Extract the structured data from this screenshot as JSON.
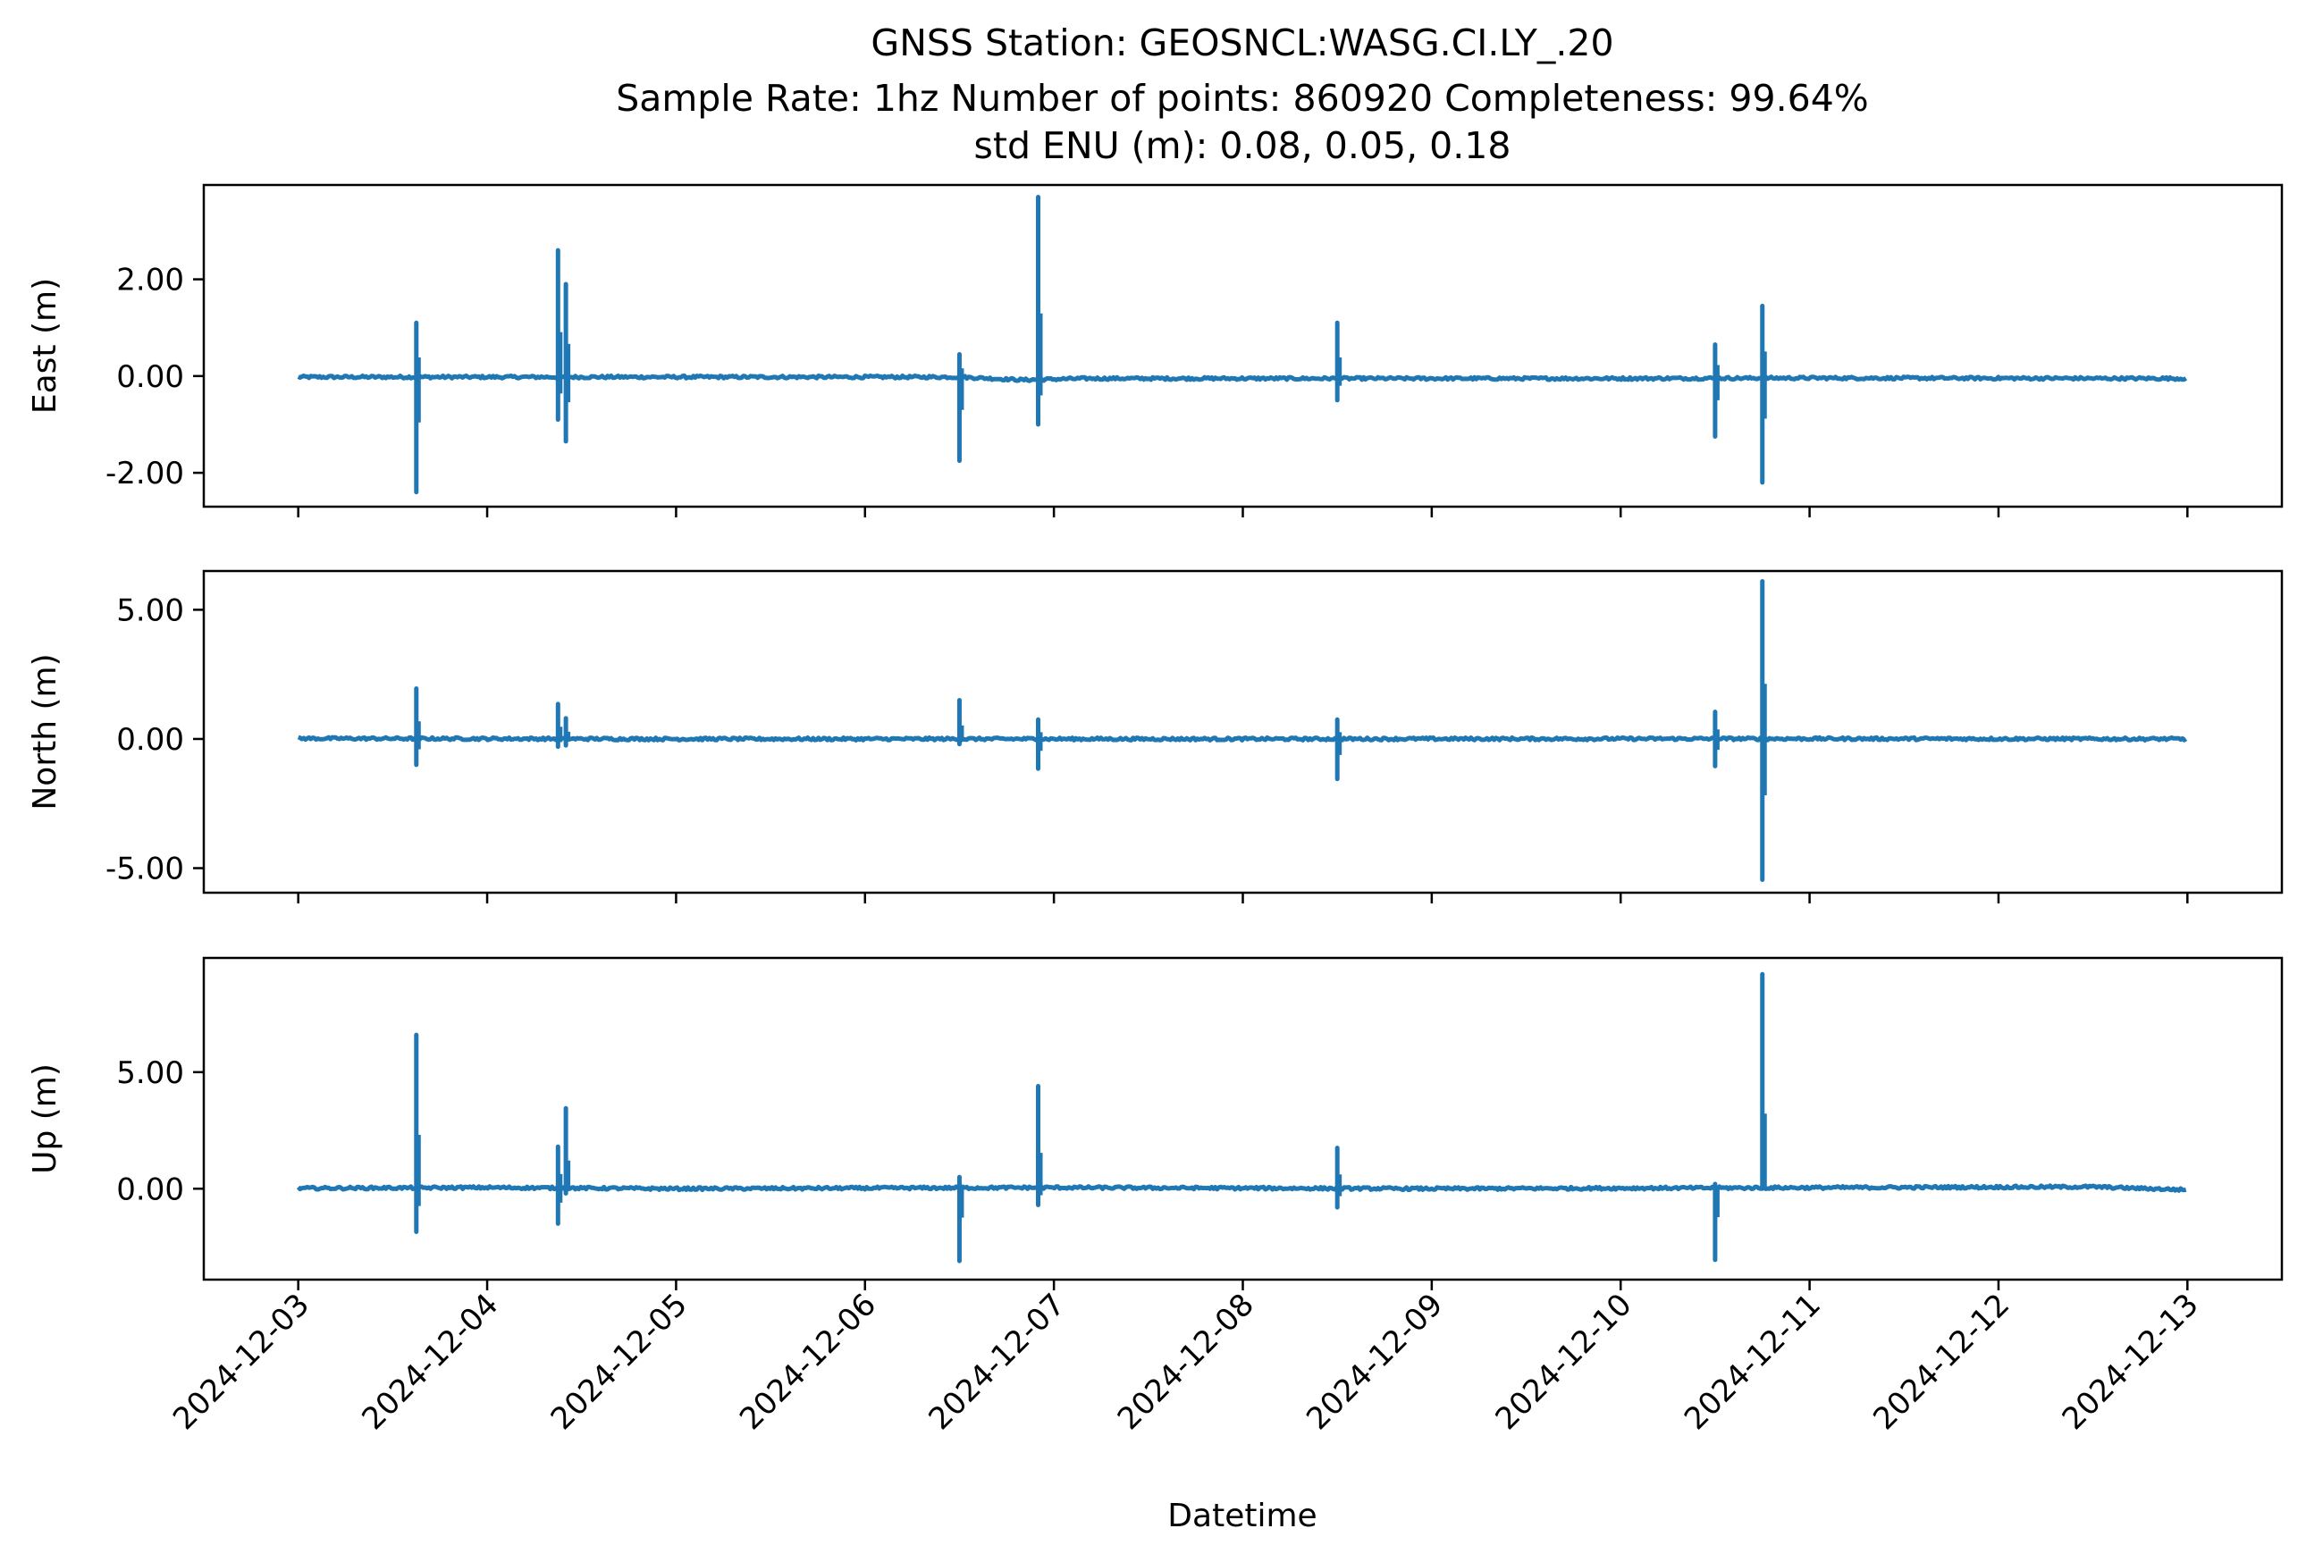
{
  "chart_data": {
    "type": "line",
    "title_lines": [
      "GNSS Station: GEOSNCL:WASG.CI.LY_.20",
      "Sample Rate: 1hz   Number of points: 860920    Completeness:  99.64%",
      "std ENU (m):  0.08, 0.05, 0.18"
    ],
    "xlabel": "Datetime",
    "x_ticks": [
      "2024-12-03",
      "2024-12-04",
      "2024-12-05",
      "2024-12-06",
      "2024-12-07",
      "2024-12-08",
      "2024-12-09",
      "2024-12-10",
      "2024-12-11",
      "2024-12-12",
      "2024-12-13"
    ],
    "x_range": [
      "2024-12-02 12:00",
      "2024-12-13 12:00"
    ],
    "color": "#1f77b4",
    "grid": false,
    "legend": "none",
    "panels": [
      {
        "ylabel": "East (m)",
        "ylim": [
          -2.7,
          3.95
        ],
        "yticks": [
          {
            "value": 2.0,
            "label": "2.00"
          },
          {
            "value": 0.0,
            "label": "0.00"
          },
          {
            "value": -2.0,
            "label": "-2.00"
          }
        ],
        "baseline": [
          [
            "2024-12-03 00:00",
            -0.02
          ],
          [
            "2024-12-06 12:00",
            -0.02
          ],
          [
            "2024-12-06 20:00",
            -0.08
          ],
          [
            "2024-12-07 04:00",
            -0.05
          ],
          [
            "2024-12-08 00:00",
            -0.05
          ],
          [
            "2024-12-10 00:00",
            -0.05
          ],
          [
            "2024-12-11 00:00",
            -0.04
          ],
          [
            "2024-12-13 00:00",
            -0.05
          ]
        ],
        "spikes": [
          {
            "time": "2024-12-03 15:00",
            "max": 1.1,
            "min": -2.4
          },
          {
            "time": "2024-12-04 09:00",
            "max": 2.6,
            "min": -0.9
          },
          {
            "time": "2024-12-04 10:00",
            "max": 1.9,
            "min": -1.35
          },
          {
            "time": "2024-12-06 12:00",
            "max": 0.45,
            "min": -1.75
          },
          {
            "time": "2024-12-06 22:00",
            "max": 3.7,
            "min": -1.0
          },
          {
            "time": "2024-12-08 12:00",
            "max": 1.1,
            "min": -0.5
          },
          {
            "time": "2024-12-10 12:00",
            "max": 0.65,
            "min": -1.25
          },
          {
            "time": "2024-12-10 18:00",
            "max": 1.45,
            "min": -2.2
          }
        ]
      },
      {
        "ylabel": "North (m)",
        "ylim": [
          -5.95,
          6.5
        ],
        "yticks": [
          {
            "value": 5.0,
            "label": "5.00"
          },
          {
            "value": 0.0,
            "label": "0.00"
          },
          {
            "value": -5.0,
            "label": "-5.00"
          }
        ],
        "baseline": [
          [
            "2024-12-03 00:00",
            0.02
          ],
          [
            "2024-12-05 00:00",
            0.0
          ],
          [
            "2024-12-08 00:00",
            0.0
          ],
          [
            "2024-12-11 00:00",
            0.01
          ],
          [
            "2024-12-13 00:00",
            0.0
          ]
        ],
        "spikes": [
          {
            "time": "2024-12-03 15:00",
            "max": 1.95,
            "min": -1.0
          },
          {
            "time": "2024-12-04 09:00",
            "max": 1.35,
            "min": -0.3
          },
          {
            "time": "2024-12-04 10:00",
            "max": 0.8,
            "min": -0.25
          },
          {
            "time": "2024-12-06 12:00",
            "max": 1.5,
            "min": -0.2
          },
          {
            "time": "2024-12-06 22:00",
            "max": 0.75,
            "min": -1.15
          },
          {
            "time": "2024-12-08 12:00",
            "max": 0.75,
            "min": -1.55
          },
          {
            "time": "2024-12-10 12:00",
            "max": 1.05,
            "min": -1.05
          },
          {
            "time": "2024-12-10 18:00",
            "max": 6.1,
            "min": -5.45
          }
        ]
      },
      {
        "ylabel": "Up (m)",
        "ylim": [
          -3.9,
          9.9
        ],
        "yticks": [
          {
            "value": 5.0,
            "label": "5.00"
          },
          {
            "value": 0.0,
            "label": "0.00"
          }
        ],
        "baseline": [
          [
            "2024-12-03 00:00",
            0.02
          ],
          [
            "2024-12-04 00:00",
            0.05
          ],
          [
            "2024-12-05 00:00",
            0.0
          ],
          [
            "2024-12-07 00:00",
            0.05
          ],
          [
            "2024-12-09 00:00",
            0.0
          ],
          [
            "2024-12-12 12:00",
            0.08
          ],
          [
            "2024-12-13 00:00",
            -0.05
          ]
        ],
        "spikes": [
          {
            "time": "2024-12-03 15:00",
            "max": 6.6,
            "min": -1.85
          },
          {
            "time": "2024-12-04 09:00",
            "max": 1.8,
            "min": -1.5
          },
          {
            "time": "2024-12-04 10:00",
            "max": 3.45,
            "min": -0.2
          },
          {
            "time": "2024-12-06 12:00",
            "max": 0.5,
            "min": -3.1
          },
          {
            "time": "2024-12-06 22:00",
            "max": 4.4,
            "min": -0.7
          },
          {
            "time": "2024-12-08 12:00",
            "max": 1.75,
            "min": -0.8
          },
          {
            "time": "2024-12-10 12:00",
            "max": 0.2,
            "min": -3.05
          },
          {
            "time": "2024-12-10 18:00",
            "max": 9.2,
            "min": 0.0
          }
        ]
      }
    ]
  }
}
